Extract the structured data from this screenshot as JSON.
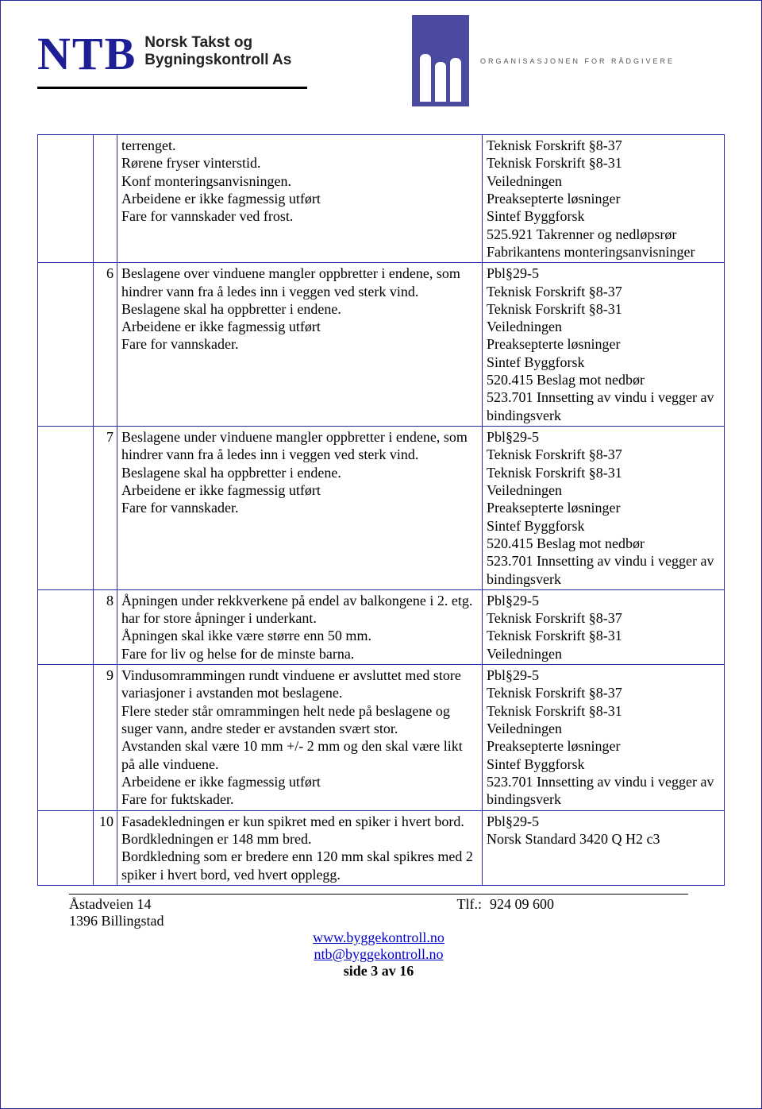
{
  "header": {
    "logo_big": "NTB",
    "logo_sub_line1": "Norsk Takst og",
    "logo_sub_line2": "Bygningskontroll As",
    "rif_tagline": "ORGANISASJONEN FOR RÅDGIVERE"
  },
  "rows": [
    {
      "num": "",
      "desc": "terrenget.\nRørene fryser vinterstid.\nKonf monteringsanvisningen.\nArbeidene er ikke fagmessig utført\nFare for vannskader ved frost.",
      "ref": "Teknisk Forskrift §8-37\nTeknisk Forskrift §8-31\nVeiledningen\nPreaksepterte løsninger\nSintef Byggforsk\n525.921 Takrenner og nedløpsrør\nFabrikantens monteringsanvisninger"
    },
    {
      "num": "6",
      "desc": "Beslagene over vinduene mangler oppbretter i endene, som hindrer vann fra å ledes inn i veggen ved sterk vind.\nBeslagene skal ha oppbretter i endene.\nArbeidene er ikke fagmessig utført\nFare for vannskader.",
      "ref": "Pbl§29-5\nTeknisk Forskrift §8-37\nTeknisk Forskrift §8-31\nVeiledningen\nPreaksepterte løsninger\nSintef Byggforsk\n520.415 Beslag mot nedbør\n523.701 Innsetting av vindu i vegger av bindingsverk"
    },
    {
      "num": "7",
      "desc": "Beslagene under vinduene mangler oppbretter i endene, som hindrer vann fra å ledes inn i veggen ved sterk vind.\nBeslagene skal ha oppbretter i endene.\nArbeidene er ikke fagmessig utført\nFare for vannskader.",
      "ref": "Pbl§29-5\nTeknisk Forskrift §8-37\nTeknisk Forskrift §8-31\nVeiledningen\nPreaksepterte løsninger\nSintef Byggforsk\n520.415 Beslag mot nedbør\n523.701 Innsetting av vindu i vegger av bindingsverk"
    },
    {
      "num": "8",
      "desc": "Åpningen under rekkverkene på endel av balkongene i 2. etg. har for store åpninger i underkant.\nÅpningen skal ikke være større enn 50 mm.\nFare for liv og helse for de minste barna.",
      "ref": "Pbl§29-5\nTeknisk Forskrift §8-37\nTeknisk Forskrift §8-31\nVeiledningen"
    },
    {
      "num": "9",
      "desc": "Vindusomrammingen rundt vinduene er avsluttet med store variasjoner i avstanden mot beslagene.\nFlere steder står omrammingen helt nede på beslagene og suger vann, andre steder er avstanden svært stor.\nAvstanden skal være 10 mm +/- 2 mm og den skal være likt på alle vinduene.\nArbeidene er ikke fagmessig utført\nFare for fuktskader.",
      "ref": "Pbl§29-5\nTeknisk Forskrift §8-37\nTeknisk Forskrift §8-31\nVeiledningen\nPreaksepterte løsninger\nSintef Byggforsk\n523.701 Innsetting av vindu i vegger av bindingsverk"
    },
    {
      "num": "10",
      "desc": "Fasadekledningen er kun spikret med en spiker i hvert bord. Bordkledningen er 148 mm bred.\nBordkledning som er bredere enn 120 mm skal spikres med 2 spiker i hvert bord, ved hvert opplegg.",
      "ref": "Pbl§29-5\nNorsk Standard 3420 Q H2 c3"
    }
  ],
  "footer": {
    "addr1": "Åstadveien 14",
    "addr2": "1396 Billingstad",
    "tlf_label": "Tlf.:",
    "tlf_value": "924 09 600",
    "web": "www.byggekontroll.no",
    "email": "ntb@byggekontroll.no",
    "page": "side 3 av 16"
  }
}
